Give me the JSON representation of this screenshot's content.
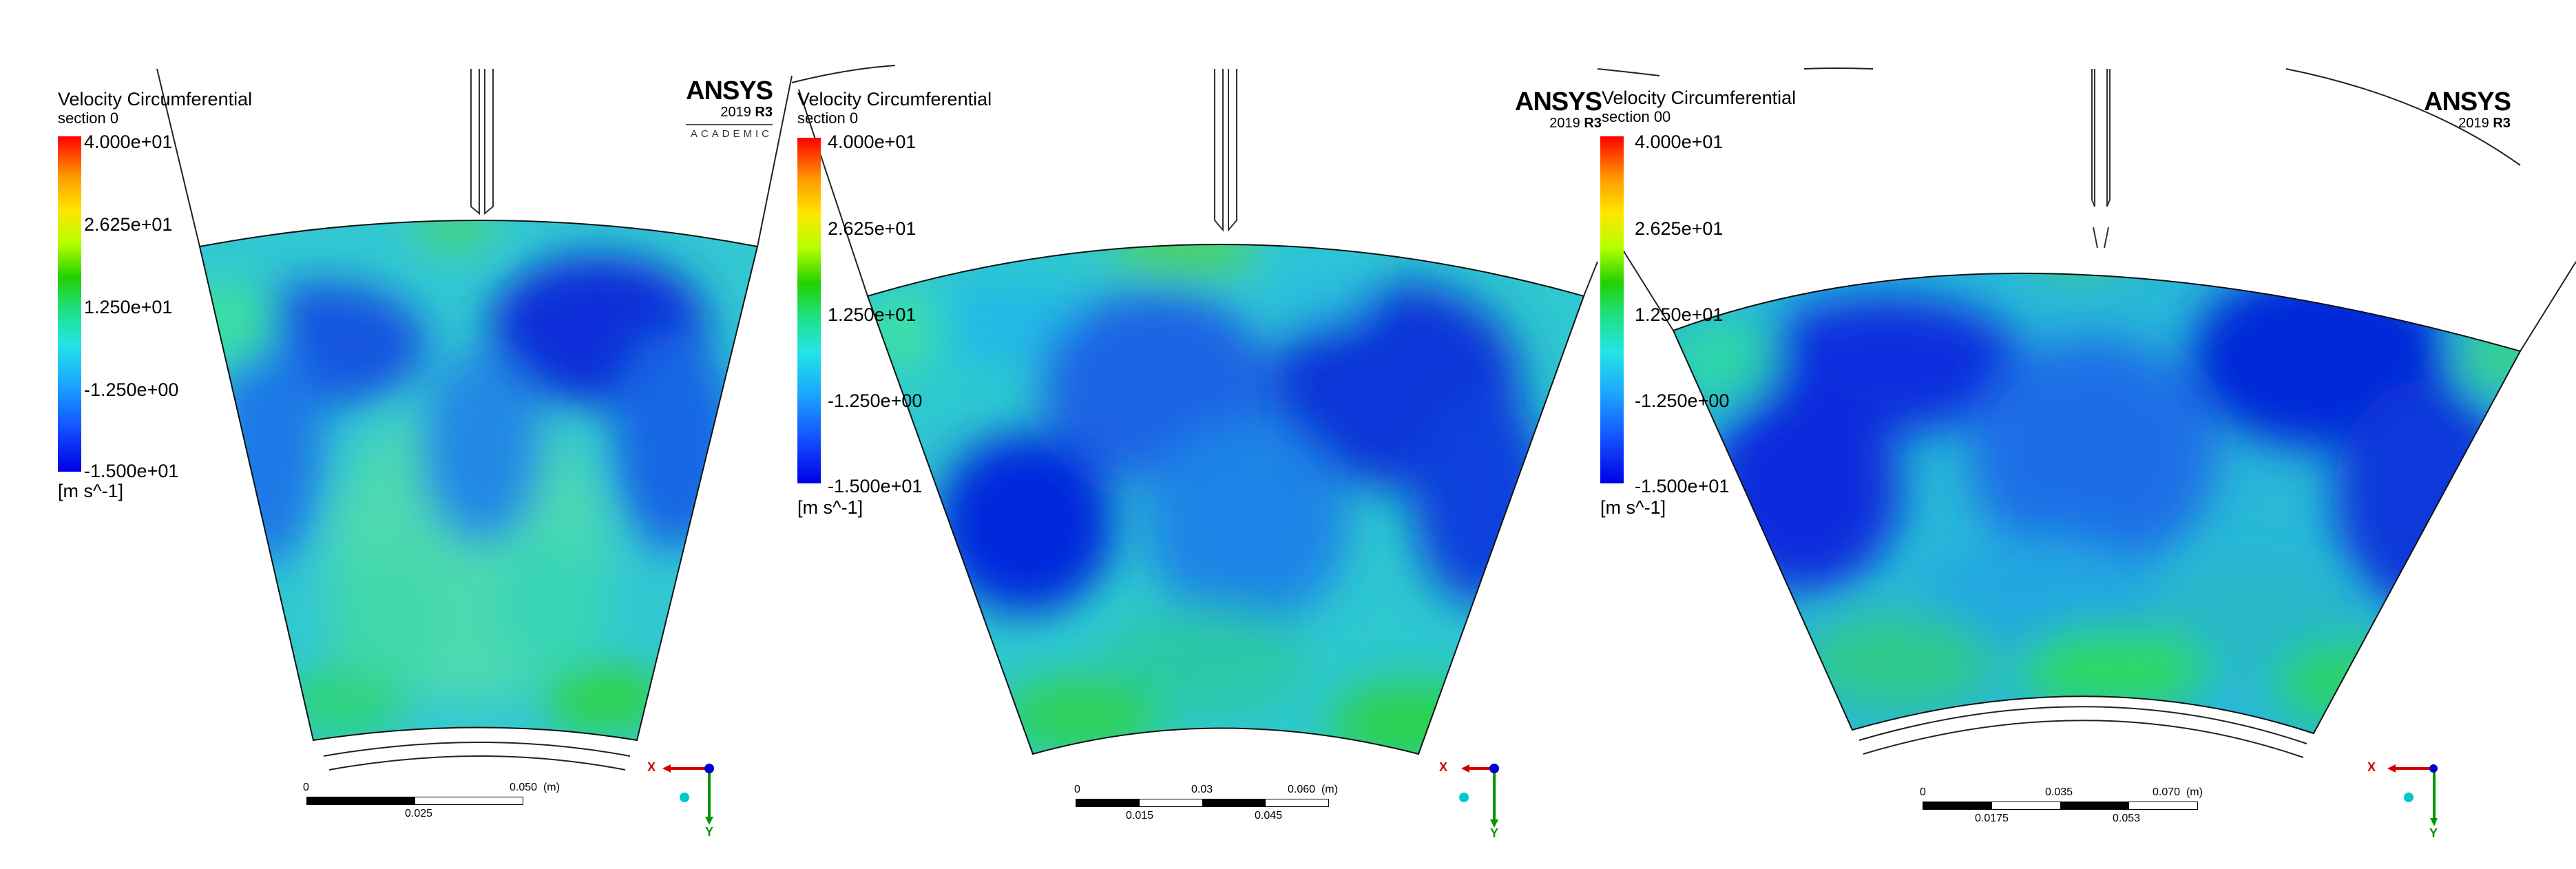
{
  "panels": [
    {
      "legend": {
        "title": "Velocity Circumferential",
        "subtitle": "section 0",
        "ticks": [
          "4.000e+01",
          "2.625e+01",
          "1.250e+01",
          "-1.250e+00",
          "-1.500e+01"
        ],
        "unit": "[m s^-1]"
      },
      "logo": {
        "brand": "ANSYS",
        "version_year": "2019",
        "version_rel": "R3",
        "edition": "ACADEMIC"
      },
      "scale": {
        "zero": "0",
        "end": "0.050",
        "unit": "(m)",
        "mid": "0.025"
      },
      "axes": {
        "x": "X",
        "y": "Y"
      }
    },
    {
      "legend": {
        "title": "Velocity Circumferential",
        "subtitle": "section 0",
        "ticks": [
          "4.000e+01",
          "2.625e+01",
          "1.250e+01",
          "-1.250e+00",
          "-1.500e+01"
        ],
        "unit": "[m s^-1]"
      },
      "logo": {
        "brand": "ANSYS",
        "version_year": "2019",
        "version_rel": "R3"
      },
      "scale": {
        "zero": "0",
        "top_mid": "0.03",
        "end": "0.060",
        "unit": "(m)",
        "low_a": "0.015",
        "low_b": "0.045"
      },
      "axes": {
        "x": "X",
        "y": "Y"
      }
    },
    {
      "legend": {
        "title": "Velocity Circumferential",
        "subtitle": "section 00",
        "ticks": [
          "4.000e+01",
          "2.625e+01",
          "1.250e+01",
          "-1.250e+00",
          "-1.500e+01"
        ],
        "unit": "[m s^-1]"
      },
      "logo": {
        "brand": "ANSYS",
        "version_year": "2019",
        "version_rel": "R3"
      },
      "scale": {
        "zero": "0",
        "top_mid": "0.035",
        "end": "0.070",
        "unit": "(m)",
        "low_a": "0.0175",
        "low_b": "0.053"
      },
      "axes": {
        "x": "X",
        "y": "Y"
      }
    }
  ],
  "colors": {
    "axis_x": "#d40000",
    "axis_y": "#009a00",
    "axis_origin": "#0000cc",
    "axis_dot": "#00c8c8"
  }
}
